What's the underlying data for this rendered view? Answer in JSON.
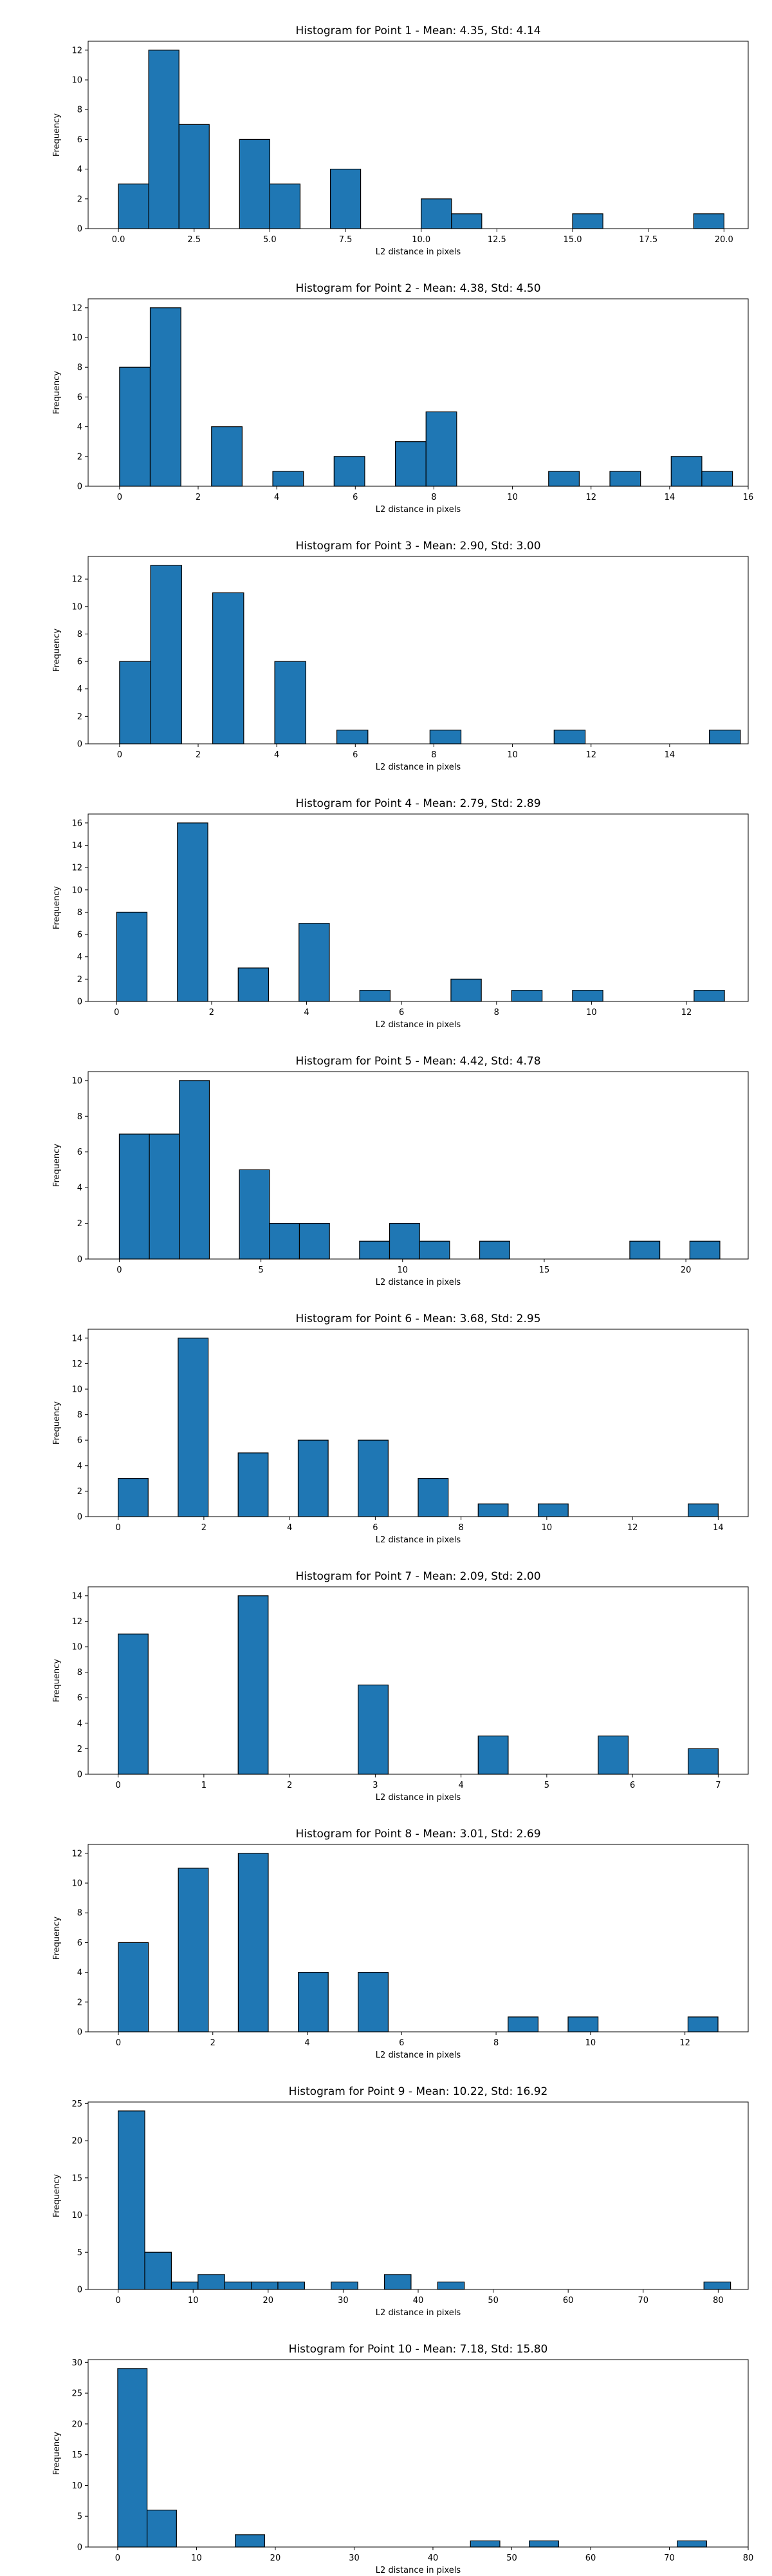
{
  "chart_data": [
    {
      "type": "bar",
      "title": "Histogram for Point 1 - Mean: 4.35, Std: 4.14",
      "xlabel": "L2 distance in pixels",
      "ylabel": "Frequency",
      "xlim": [
        -1,
        20.8
      ],
      "ylim": [
        0,
        12.6
      ],
      "xticks": [
        0.0,
        2.5,
        5.0,
        7.5,
        10.0,
        12.5,
        15.0,
        17.5,
        20.0
      ],
      "xtick_labels": [
        "0.0",
        "2.5",
        "5.0",
        "7.5",
        "10.0",
        "12.5",
        "15.0",
        "17.5",
        "20.0"
      ],
      "yticks": [
        0,
        2,
        4,
        6,
        8,
        10,
        12
      ],
      "bin_width": 1.0,
      "bins": [
        {
          "x": 0.0,
          "count": 3
        },
        {
          "x": 1.0,
          "count": 12
        },
        {
          "x": 2.0,
          "count": 7
        },
        {
          "x": 4.0,
          "count": 6
        },
        {
          "x": 5.0,
          "count": 3
        },
        {
          "x": 7.0,
          "count": 4
        },
        {
          "x": 10.0,
          "count": 2
        },
        {
          "x": 11.0,
          "count": 1
        },
        {
          "x": 15.0,
          "count": 1
        },
        {
          "x": 19.0,
          "count": 1
        }
      ],
      "bar_color": "#1f77b4",
      "edge_color": "#000000"
    },
    {
      "type": "bar",
      "title": "Histogram for Point 2 - Mean: 4.38, Std: 4.50",
      "xlabel": "L2 distance in pixels",
      "ylabel": "Frequency",
      "xlim": [
        -0.8,
        16.0
      ],
      "ylim": [
        0,
        12.6
      ],
      "xticks": [
        0,
        2,
        4,
        6,
        8,
        10,
        12,
        14,
        16
      ],
      "xtick_labels": [
        "0",
        "2",
        "4",
        "6",
        "8",
        "10",
        "12",
        "14",
        "16"
      ],
      "yticks": [
        0,
        2,
        4,
        6,
        8,
        10,
        12
      ],
      "bin_width": 0.78,
      "bins": [
        {
          "x": 0.0,
          "count": 8
        },
        {
          "x": 0.78,
          "count": 12
        },
        {
          "x": 2.34,
          "count": 4
        },
        {
          "x": 3.9,
          "count": 1
        },
        {
          "x": 5.46,
          "count": 2
        },
        {
          "x": 7.02,
          "count": 3
        },
        {
          "x": 7.8,
          "count": 5
        },
        {
          "x": 10.92,
          "count": 1
        },
        {
          "x": 12.48,
          "count": 1
        },
        {
          "x": 14.04,
          "count": 2
        },
        {
          "x": 14.82,
          "count": 1
        }
      ],
      "bar_color": "#1f77b4",
      "edge_color": "#000000"
    },
    {
      "type": "bar",
      "title": "Histogram for Point 3 - Mean: 2.90, Std: 3.00",
      "xlabel": "L2 distance in pixels",
      "ylabel": "Frequency",
      "xlim": [
        -0.8,
        16.0
      ],
      "ylim": [
        0,
        13.65
      ],
      "xticks": [
        0,
        2,
        4,
        6,
        8,
        10,
        12,
        14
      ],
      "xtick_labels": [
        "0",
        "2",
        "4",
        "6",
        "8",
        "10",
        "12",
        "14"
      ],
      "yticks": [
        0,
        2,
        4,
        6,
        8,
        10,
        12
      ],
      "bin_width": 0.79,
      "bins": [
        {
          "x": 0.0,
          "count": 6
        },
        {
          "x": 0.79,
          "count": 13
        },
        {
          "x": 2.37,
          "count": 11
        },
        {
          "x": 3.95,
          "count": 6
        },
        {
          "x": 5.53,
          "count": 1
        },
        {
          "x": 7.9,
          "count": 1
        },
        {
          "x": 11.06,
          "count": 1
        },
        {
          "x": 15.01,
          "count": 1
        }
      ],
      "bar_color": "#1f77b4",
      "edge_color": "#000000"
    },
    {
      "type": "bar",
      "title": "Histogram for Point 4 - Mean: 2.79, Std: 2.89",
      "xlabel": "L2 distance in pixels",
      "ylabel": "Frequency",
      "xlim": [
        -0.6,
        13.3
      ],
      "ylim": [
        0,
        16.8
      ],
      "xticks": [
        0,
        2,
        4,
        6,
        8,
        10,
        12
      ],
      "xtick_labels": [
        "0",
        "2",
        "4",
        "6",
        "8",
        "10",
        "12"
      ],
      "yticks": [
        0,
        2,
        4,
        6,
        8,
        10,
        12,
        14,
        16
      ],
      "bin_width": 0.64,
      "bins": [
        {
          "x": 0.0,
          "count": 8
        },
        {
          "x": 1.28,
          "count": 16
        },
        {
          "x": 2.56,
          "count": 3
        },
        {
          "x": 3.84,
          "count": 7
        },
        {
          "x": 5.12,
          "count": 1
        },
        {
          "x": 7.04,
          "count": 2
        },
        {
          "x": 8.32,
          "count": 1
        },
        {
          "x": 9.6,
          "count": 1
        },
        {
          "x": 12.16,
          "count": 1
        }
      ],
      "bar_color": "#1f77b4",
      "edge_color": "#000000"
    },
    {
      "type": "bar",
      "title": "Histogram for Point 5 - Mean: 4.42, Std: 4.78",
      "xlabel": "L2 distance in pixels",
      "ylabel": "Frequency",
      "xlim": [
        -1.1,
        22.2
      ],
      "ylim": [
        0,
        10.5
      ],
      "xticks": [
        0,
        5,
        10,
        15,
        20
      ],
      "xtick_labels": [
        "0",
        "5",
        "10",
        "15",
        "20"
      ],
      "yticks": [
        0,
        2,
        4,
        6,
        8,
        10
      ],
      "bin_width": 1.06,
      "bins": [
        {
          "x": 0.0,
          "count": 7
        },
        {
          "x": 1.06,
          "count": 7
        },
        {
          "x": 2.12,
          "count": 10
        },
        {
          "x": 4.24,
          "count": 5
        },
        {
          "x": 5.3,
          "count": 2
        },
        {
          "x": 6.36,
          "count": 2
        },
        {
          "x": 8.48,
          "count": 1
        },
        {
          "x": 9.54,
          "count": 2
        },
        {
          "x": 10.6,
          "count": 1
        },
        {
          "x": 12.72,
          "count": 1
        },
        {
          "x": 18.02,
          "count": 1
        },
        {
          "x": 20.14,
          "count": 1
        }
      ],
      "bar_color": "#1f77b4",
      "edge_color": "#000000"
    },
    {
      "type": "bar",
      "title": "Histogram for Point 6 - Mean: 3.68, Std: 2.95",
      "xlabel": "L2 distance in pixels",
      "ylabel": "Frequency",
      "xlim": [
        -0.7,
        14.7
      ],
      "ylim": [
        0,
        14.7
      ],
      "xticks": [
        0,
        2,
        4,
        6,
        8,
        10,
        12,
        14
      ],
      "xtick_labels": [
        "0",
        "2",
        "4",
        "6",
        "8",
        "10",
        "12",
        "14"
      ],
      "yticks": [
        0,
        2,
        4,
        6,
        8,
        10,
        12,
        14
      ],
      "bin_width": 0.7,
      "bins": [
        {
          "x": 0.0,
          "count": 3
        },
        {
          "x": 1.4,
          "count": 14
        },
        {
          "x": 2.8,
          "count": 5
        },
        {
          "x": 4.2,
          "count": 6
        },
        {
          "x": 5.6,
          "count": 6
        },
        {
          "x": 7.0,
          "count": 3
        },
        {
          "x": 8.4,
          "count": 1
        },
        {
          "x": 9.8,
          "count": 1
        },
        {
          "x": 13.3,
          "count": 1
        }
      ],
      "bar_color": "#1f77b4",
      "edge_color": "#000000"
    },
    {
      "type": "bar",
      "title": "Histogram for Point 7 - Mean: 2.09, Std: 2.00",
      "xlabel": "L2 distance in pixels",
      "ylabel": "Frequency",
      "xlim": [
        -0.35,
        7.35
      ],
      "ylim": [
        0,
        14.7
      ],
      "xticks": [
        0,
        1,
        2,
        3,
        4,
        5,
        6,
        7
      ],
      "xtick_labels": [
        "0",
        "1",
        "2",
        "3",
        "4",
        "5",
        "6",
        "7"
      ],
      "yticks": [
        0,
        2,
        4,
        6,
        8,
        10,
        12,
        14
      ],
      "bin_width": 0.35,
      "bins": [
        {
          "x": 0.0,
          "count": 11
        },
        {
          "x": 1.4,
          "count": 14
        },
        {
          "x": 2.8,
          "count": 7
        },
        {
          "x": 4.2,
          "count": 3
        },
        {
          "x": 5.6,
          "count": 3
        },
        {
          "x": 6.65,
          "count": 2
        }
      ],
      "bar_color": "#1f77b4",
      "edge_color": "#000000"
    },
    {
      "type": "bar",
      "title": "Histogram for Point 8 - Mean: 3.01, Std: 2.69",
      "xlabel": "L2 distance in pixels",
      "ylabel": "Frequency",
      "xlim": [
        -0.64,
        13.34
      ],
      "ylim": [
        0,
        12.6
      ],
      "xticks": [
        0,
        2,
        4,
        6,
        8,
        10,
        12
      ],
      "xtick_labels": [
        "0",
        "2",
        "4",
        "6",
        "8",
        "10",
        "12"
      ],
      "yticks": [
        0,
        2,
        4,
        6,
        8,
        10,
        12
      ],
      "bin_width": 0.635,
      "bins": [
        {
          "x": 0.0,
          "count": 6
        },
        {
          "x": 1.27,
          "count": 11
        },
        {
          "x": 2.54,
          "count": 12
        },
        {
          "x": 3.81,
          "count": 4
        },
        {
          "x": 5.08,
          "count": 4
        },
        {
          "x": 8.255,
          "count": 1
        },
        {
          "x": 9.525,
          "count": 1
        },
        {
          "x": 12.065,
          "count": 1
        }
      ],
      "bar_color": "#1f77b4",
      "edge_color": "#000000"
    },
    {
      "type": "bar",
      "title": "Histogram for Point 9 - Mean: 10.22, Std: 16.92",
      "xlabel": "L2 distance in pixels",
      "ylabel": "Frequency",
      "xlim": [
        -4.0,
        84.0
      ],
      "ylim": [
        0,
        25.2
      ],
      "xticks": [
        0,
        10,
        20,
        30,
        40,
        50,
        60,
        70,
        80
      ],
      "xtick_labels": [
        "0",
        "10",
        "20",
        "30",
        "40",
        "50",
        "60",
        "70",
        "80"
      ],
      "yticks": [
        0,
        5,
        10,
        15,
        20,
        25
      ],
      "bin_width": 3.55,
      "bins": [
        {
          "x": 0.0,
          "count": 24
        },
        {
          "x": 3.55,
          "count": 5
        },
        {
          "x": 7.1,
          "count": 1
        },
        {
          "x": 10.65,
          "count": 2
        },
        {
          "x": 14.2,
          "count": 1
        },
        {
          "x": 17.75,
          "count": 1
        },
        {
          "x": 21.3,
          "count": 1
        },
        {
          "x": 28.4,
          "count": 1
        },
        {
          "x": 35.5,
          "count": 2
        },
        {
          "x": 42.6,
          "count": 1
        },
        {
          "x": 78.1,
          "count": 1
        }
      ],
      "bar_color": "#1f77b4",
      "edge_color": "#000000"
    },
    {
      "type": "bar",
      "title": "Histogram for Point 10 - Mean: 7.18, Std: 15.80",
      "xlabel": "L2 distance in pixels",
      "ylabel": "Frequency",
      "xlim": [
        -3.75,
        80.0
      ],
      "ylim": [
        0,
        30.45
      ],
      "xticks": [
        0,
        10,
        20,
        30,
        40,
        50,
        60,
        70,
        80
      ],
      "xtick_labels": [
        "0",
        "10",
        "20",
        "30",
        "40",
        "50",
        "60",
        "70",
        "80"
      ],
      "yticks": [
        0,
        5,
        10,
        15,
        20,
        25,
        30
      ],
      "bin_width": 3.73,
      "bins": [
        {
          "x": 0.0,
          "count": 29
        },
        {
          "x": 3.73,
          "count": 6
        },
        {
          "x": 14.92,
          "count": 2
        },
        {
          "x": 44.76,
          "count": 1
        },
        {
          "x": 52.22,
          "count": 1
        },
        {
          "x": 71.0,
          "count": 1
        }
      ],
      "bar_color": "#1f77b4",
      "edge_color": "#000000"
    }
  ]
}
